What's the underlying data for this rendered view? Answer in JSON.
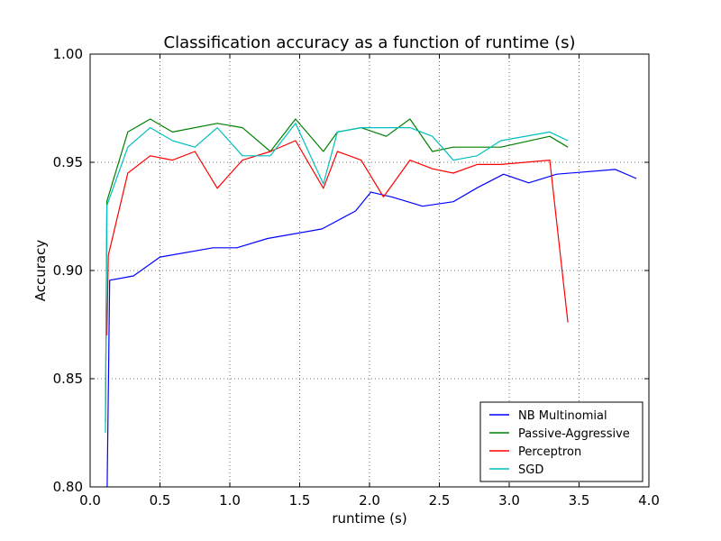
{
  "chart_data": {
    "type": "line",
    "title": "Classification accuracy as a function of runtime (s)",
    "xlabel": "runtime (s)",
    "ylabel": "Accuracy",
    "xlim": [
      0.0,
      4.0
    ],
    "ylim": [
      0.8,
      1.0
    ],
    "xticks": [
      "0.0",
      "0.5",
      "1.0",
      "1.5",
      "2.0",
      "2.5",
      "3.0",
      "3.5",
      "4.0"
    ],
    "yticks": [
      "0.80",
      "0.85",
      "0.90",
      "0.95",
      "1.00"
    ],
    "grid": true,
    "legend_position": "lower-right",
    "series": [
      {
        "name": "NB Multinomial",
        "color": "#0000ff",
        "x": [
          0.12,
          0.14,
          0.31,
          0.5,
          0.88,
          1.05,
          1.27,
          1.66,
          1.9,
          2.01,
          2.16,
          2.38,
          2.6,
          2.77,
          2.96,
          3.14,
          3.34,
          3.76,
          3.91
        ],
        "y": [
          0.79,
          0.8955,
          0.8975,
          0.9062,
          0.9105,
          0.9105,
          0.9148,
          0.9192,
          0.9275,
          0.9362,
          0.934,
          0.9297,
          0.9318,
          0.9382,
          0.9445,
          0.9405,
          0.9445,
          0.9467,
          0.9425
        ]
      },
      {
        "name": "Passive-Aggressive",
        "color": "#008000",
        "x": [
          0.11,
          0.12,
          0.27,
          0.43,
          0.59,
          0.91,
          1.09,
          1.29,
          1.47,
          1.67,
          1.77,
          1.94,
          2.12,
          2.29,
          2.45,
          2.6,
          2.94,
          3.29,
          3.42
        ],
        "y": [
          0.83,
          0.932,
          0.964,
          0.97,
          0.964,
          0.968,
          0.966,
          0.955,
          0.97,
          0.955,
          0.964,
          0.966,
          0.962,
          0.97,
          0.955,
          0.957,
          0.957,
          0.962,
          0.957
        ]
      },
      {
        "name": "Perceptron",
        "color": "#ff0000",
        "x": [
          0.12,
          0.13,
          0.27,
          0.43,
          0.59,
          0.75,
          0.91,
          1.09,
          1.29,
          1.47,
          1.67,
          1.77,
          1.94,
          2.1,
          2.29,
          2.45,
          2.6,
          2.77,
          2.94,
          3.29,
          3.42
        ],
        "y": [
          0.87,
          0.907,
          0.945,
          0.953,
          0.951,
          0.955,
          0.938,
          0.951,
          0.955,
          0.96,
          0.938,
          0.955,
          0.951,
          0.934,
          0.951,
          0.947,
          0.945,
          0.949,
          0.949,
          0.951,
          0.876
        ]
      },
      {
        "name": "SGD",
        "color": "#00bfbf",
        "x": [
          0.11,
          0.12,
          0.27,
          0.43,
          0.59,
          0.75,
          0.91,
          1.09,
          1.29,
          1.47,
          1.67,
          1.77,
          1.94,
          2.12,
          2.29,
          2.45,
          2.6,
          2.77,
          2.94,
          3.29,
          3.42
        ],
        "y": [
          0.825,
          0.93,
          0.957,
          0.966,
          0.96,
          0.957,
          0.966,
          0.953,
          0.953,
          0.968,
          0.94,
          0.964,
          0.966,
          0.966,
          0.966,
          0.962,
          0.951,
          0.953,
          0.96,
          0.964,
          0.96
        ]
      }
    ]
  }
}
